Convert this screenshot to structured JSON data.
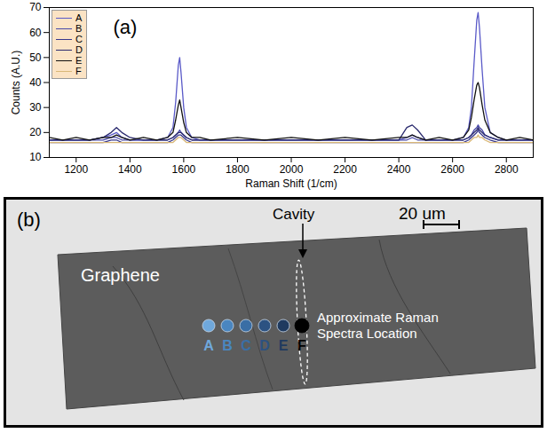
{
  "chart_data": {
    "type": "line",
    "panel_label": "(a)",
    "x_label": "Raman Shift (1/cm)",
    "y_label": "Counts (A.U.)",
    "xlim": [
      1100,
      2900
    ],
    "xticks": [
      1200,
      1400,
      1600,
      1800,
      2000,
      2200,
      2400,
      2600,
      2800
    ],
    "ylim": [
      10,
      70
    ],
    "yticks": [
      10,
      20,
      30,
      40,
      50,
      60,
      70
    ],
    "grid": false,
    "legend": "upper left",
    "x": [
      1100,
      1150,
      1200,
      1250,
      1300,
      1330,
      1350,
      1370,
      1400,
      1450,
      1500,
      1540,
      1560,
      1570,
      1580,
      1585,
      1590,
      1600,
      1610,
      1630,
      1660,
      1700,
      1800,
      1900,
      2000,
      2100,
      2200,
      2300,
      2400,
      2430,
      2450,
      2470,
      2500,
      2550,
      2600,
      2640,
      2660,
      2670,
      2680,
      2690,
      2695,
      2700,
      2710,
      2720,
      2740,
      2770,
      2800,
      2850,
      2900
    ],
    "series": [
      {
        "name": "A",
        "color": "#5a5ac8",
        "values": [
          17,
          17,
          17,
          17,
          18,
          19,
          20,
          18,
          17,
          17,
          17,
          18,
          22,
          32,
          47,
          50,
          44,
          30,
          22,
          18,
          17,
          17,
          17,
          17,
          17,
          17,
          17,
          17,
          17,
          18,
          19,
          18,
          17,
          17,
          17,
          18,
          22,
          30,
          48,
          65,
          68,
          62,
          45,
          30,
          20,
          18,
          17,
          17,
          17
        ]
      },
      {
        "name": "B",
        "color": "#4848a8",
        "values": [
          17,
          17,
          17,
          17,
          17,
          18,
          18,
          17,
          17,
          17,
          17,
          17,
          18,
          19,
          20,
          21,
          20,
          19,
          18,
          17,
          17,
          17,
          17,
          17,
          17,
          17,
          17,
          17,
          17,
          17,
          18,
          17,
          17,
          17,
          17,
          17,
          18,
          19,
          21,
          22,
          23,
          22,
          21,
          19,
          18,
          17,
          17,
          17,
          17
        ]
      },
      {
        "name": "C",
        "color": "#38388c",
        "values": [
          16,
          16,
          16,
          16,
          16,
          17,
          17,
          16,
          16,
          16,
          16,
          16,
          17,
          18,
          19,
          19,
          19,
          18,
          17,
          16,
          16,
          16,
          16,
          16,
          16,
          16,
          16,
          16,
          16,
          16,
          16,
          16,
          16,
          16,
          16,
          16,
          17,
          18,
          19,
          20,
          21,
          20,
          19,
          18,
          17,
          16,
          16,
          16,
          16
        ]
      },
      {
        "name": "D",
        "color": "#2a2a6e",
        "values": [
          17,
          17,
          17,
          17,
          18,
          20,
          22,
          20,
          18,
          17,
          17,
          17,
          18,
          19,
          20,
          20,
          20,
          19,
          18,
          17,
          17,
          17,
          17,
          17,
          17,
          17,
          17,
          17,
          17,
          22,
          23,
          21,
          17,
          17,
          17,
          17,
          18,
          19,
          20,
          21,
          22,
          21,
          20,
          19,
          18,
          17,
          17,
          17,
          17
        ]
      },
      {
        "name": "E",
        "color": "#111111",
        "values": [
          18,
          17,
          18,
          17,
          18,
          18,
          19,
          18,
          17,
          18,
          17,
          18,
          20,
          25,
          31,
          33,
          30,
          24,
          20,
          18,
          18,
          17,
          18,
          17,
          18,
          17,
          18,
          17,
          18,
          18,
          19,
          18,
          17,
          18,
          17,
          18,
          21,
          26,
          33,
          39,
          40,
          38,
          31,
          25,
          20,
          18,
          17,
          18,
          17
        ]
      },
      {
        "name": "F",
        "color": "#d9b878",
        "values": [
          16,
          16,
          16,
          16,
          16,
          16,
          16,
          16,
          16,
          16,
          16,
          16,
          16,
          17,
          18,
          18,
          18,
          17,
          16,
          16,
          16,
          16,
          16,
          16,
          16,
          16,
          16,
          16,
          16,
          16,
          16,
          16,
          16,
          16,
          16,
          16,
          16,
          17,
          18,
          18,
          19,
          18,
          18,
          17,
          16,
          16,
          16,
          16,
          16
        ]
      }
    ]
  },
  "micrograph": {
    "panel_label": "(b)",
    "material": "Graphene",
    "cavity": "Cavity",
    "scale_bar": "20 um",
    "note": "Approximate Raman Spectra Location",
    "points": [
      {
        "label": "A",
        "color": "#6fa8dc"
      },
      {
        "label": "B",
        "color": "#4a86c0"
      },
      {
        "label": "C",
        "color": "#3a6ea5"
      },
      {
        "label": "D",
        "color": "#2c5282"
      },
      {
        "label": "E",
        "color": "#1f3a5f"
      },
      {
        "label": "F",
        "color": "#000000"
      }
    ]
  }
}
